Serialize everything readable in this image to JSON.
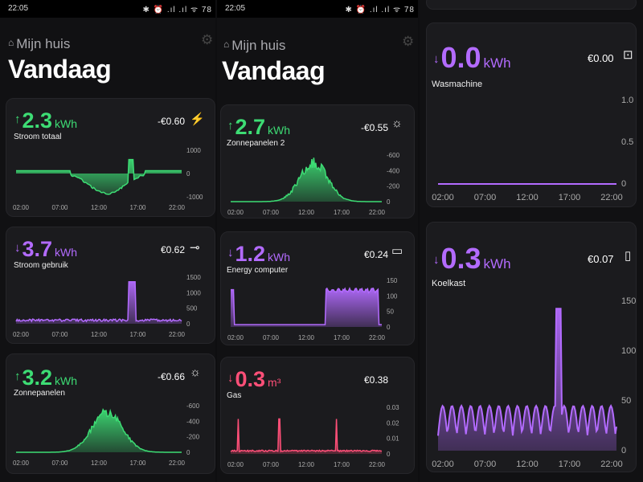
{
  "screens": [
    {
      "status_time": "22:05",
      "status_icons": "✱ ⏰ .ıl .ıl ᯤ 78",
      "home_label": "Mijn huis",
      "title": "Vandaag",
      "cards": [
        {
          "arrow": "↑",
          "value": "2.3",
          "unit": "kWh",
          "label": "Stroom totaal",
          "cost": "-€0.60",
          "icon_name": "power-pylon-icon",
          "icon": "⚡",
          "color": "#3ddc74",
          "yticks": [
            "1000",
            "0",
            "-1000"
          ],
          "xticks": [
            "02:00",
            "07:00",
            "12:00",
            "17:00",
            "22:00"
          ]
        },
        {
          "arrow": "↓",
          "value": "3.7",
          "unit": "kWh",
          "label": "Stroom gebruik",
          "cost": "€0.62",
          "icon_name": "plug-icon",
          "icon": "⊸",
          "color": "#b36bff",
          "yticks": [
            "1500",
            "1000",
            "500",
            "0"
          ],
          "xticks": [
            "02:00",
            "07:00",
            "12:00",
            "17:00",
            "22:00"
          ]
        },
        {
          "arrow": "↑",
          "value": "3.2",
          "unit": "kWh",
          "label": "Zonnepanelen",
          "cost": "-€0.66",
          "icon_name": "sun-icon",
          "icon": "☼",
          "color": "#3ddc74",
          "yticks": [
            "-600",
            "-400",
            "-200",
            "0"
          ],
          "xticks": [
            "02:00",
            "07:00",
            "12:00",
            "17:00",
            "22:00"
          ]
        }
      ]
    },
    {
      "status_time": "22:05",
      "status_icons": "✱ ⏰ .ıl .ıl ᯤ 78",
      "home_label": "Mijn huis",
      "title": "Vandaag",
      "cards": [
        {
          "arrow": "↑",
          "value": "2.7",
          "unit": "kWh",
          "label": "Zonnepanelen 2",
          "cost": "-€0.55",
          "icon_name": "sun-icon",
          "icon": "☼",
          "color": "#3ddc74",
          "yticks": [
            "-600",
            "-400",
            "-200",
            "0"
          ],
          "xticks": [
            "02:00",
            "07:00",
            "12:00",
            "17:00",
            "22:00"
          ]
        },
        {
          "arrow": "↓",
          "value": "1.2",
          "unit": "kWh",
          "label": "Energy computer",
          "cost": "€0.24",
          "icon_name": "monitor-icon",
          "icon": "▭",
          "color": "#b36bff",
          "yticks": [
            "150",
            "100",
            "50",
            "0"
          ],
          "xticks": [
            "02:00",
            "07:00",
            "12:00",
            "17:00",
            "22:00"
          ]
        },
        {
          "arrow": "↓",
          "value": "0.3",
          "unit": "m³",
          "label": "Gas",
          "cost": "€0.38",
          "icon_name": "flame-icon",
          "icon": "",
          "color": "#ff4f78",
          "yticks": [
            "0.03",
            "0.02",
            "0.01",
            "0"
          ],
          "xticks": [
            "02:00",
            "07:00",
            "12:00",
            "17:00",
            "22:00"
          ]
        }
      ]
    },
    {
      "cards": [
        {
          "arrow": "↓",
          "value": "0.0",
          "unit": "kWh",
          "label": "Wasmachine",
          "cost": "€0.00",
          "icon_name": "washing-machine-icon",
          "icon": "⊡",
          "color": "#b36bff",
          "yticks": [
            "1.0",
            "0.5",
            "0"
          ],
          "xticks": [
            "02:00",
            "07:00",
            "12:00",
            "17:00",
            "22:00"
          ]
        },
        {
          "arrow": "↓",
          "value": "0.3",
          "unit": "kWh",
          "label": "Koelkast",
          "cost": "€0.07",
          "icon_name": "fridge-icon",
          "icon": "▯",
          "color": "#b36bff",
          "yticks": [
            "150",
            "100",
            "50",
            "0"
          ],
          "xticks": [
            "02:00",
            "07:00",
            "12:00",
            "17:00",
            "22:00"
          ]
        }
      ]
    }
  ]
}
